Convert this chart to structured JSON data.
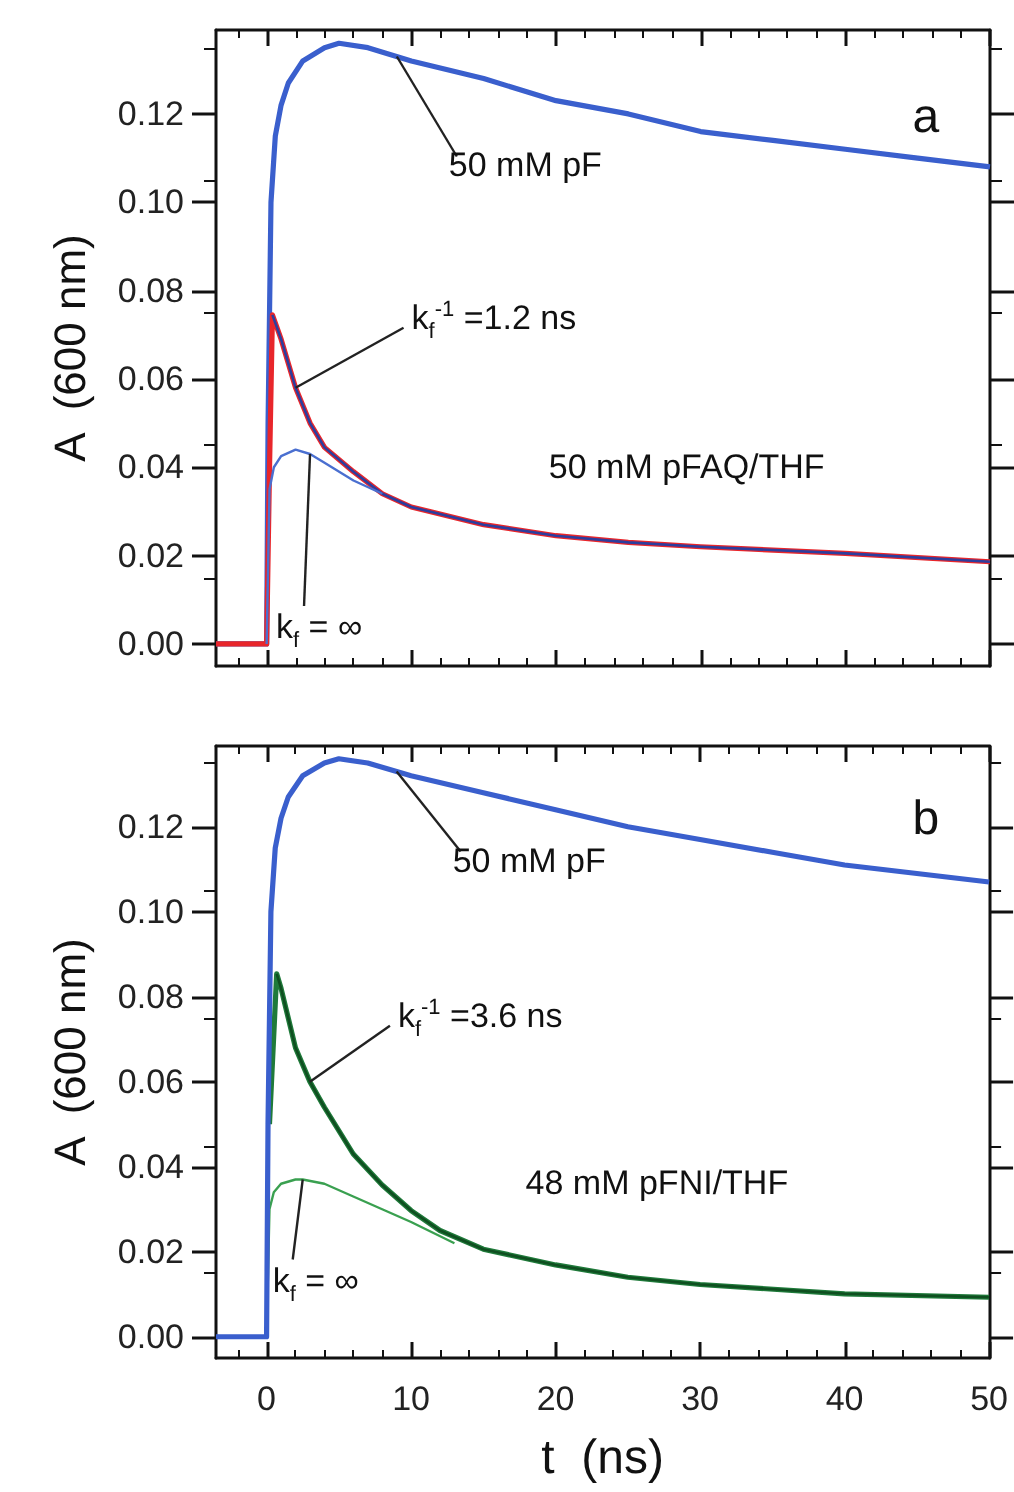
{
  "chart_data": [
    {
      "type": "line",
      "ylabel": "A  (600 nm)",
      "xlim": [
        -3.5,
        50
      ],
      "xticks": [
        0,
        10,
        20,
        30,
        40,
        50
      ],
      "ylim": [
        -0.005,
        0.139
      ],
      "yticks": [
        {
          "value": 0,
          "label": "0.00"
        },
        {
          "value": 0.02,
          "label": "0.02"
        },
        {
          "value": 0.04,
          "label": "0.04"
        },
        {
          "value": 0.06,
          "label": "0.06"
        },
        {
          "value": 0.08,
          "label": "0.08"
        },
        {
          "value": 0.1,
          "label": "0.10"
        },
        {
          "value": 0.12,
          "label": "0.12"
        }
      ],
      "tick_labels": "y",
      "marker": "none",
      "series": [
        {
          "color": "#3a5fcd",
          "x": [
            -3.5,
            -2,
            -1,
            0,
            0.1,
            0.3,
            0.6,
            1,
            1.5,
            2.5,
            4,
            5,
            7,
            10,
            15,
            20,
            25,
            30,
            35,
            40,
            45,
            50
          ],
          "values": [
            0,
            0,
            0,
            0,
            0.05,
            0.1,
            0.115,
            0.122,
            0.127,
            0.132,
            0.135,
            0.136,
            0.135,
            0.132,
            0.128,
            0.123,
            0.12,
            0.116,
            0.114,
            0.112,
            0.11,
            0.108
          ]
        },
        {
          "color": "#e8262b",
          "x": [
            -3.5,
            -2,
            -1,
            0,
            0.2,
            0.4,
            1,
            2,
            3,
            4,
            6,
            8,
            10,
            15,
            20,
            25,
            30,
            40,
            50
          ],
          "values": [
            0,
            0,
            0,
            0,
            0.04,
            0.0745,
            0.069,
            0.058,
            0.05,
            0.0445,
            0.039,
            0.034,
            0.031,
            0.027,
            0.0245,
            0.023,
            0.022,
            0.0205,
            0.0186
          ]
        },
        {
          "color": "#2c3e9e",
          "x": [
            0.4,
            1,
            2,
            3,
            4,
            6,
            8,
            10,
            15,
            20,
            25,
            30,
            40,
            50
          ],
          "values": [
            0.0745,
            0.069,
            0.058,
            0.05,
            0.0445,
            0.039,
            0.034,
            0.031,
            0.027,
            0.0245,
            0.023,
            0.022,
            0.0205,
            0.0186
          ]
        },
        {
          "color": "#4a6fd0",
          "x": [
            0,
            0.2,
            0.5,
            1,
            2,
            3,
            4,
            6,
            8
          ],
          "values": [
            0,
            0.035,
            0.04,
            0.0425,
            0.044,
            0.043,
            0.041,
            0.037,
            0.034
          ]
        }
      ],
      "annotations": [
        {
          "text": "50 mM pF",
          "x": 9,
          "y": 0.133
        },
        {
          "text": "k$_{f}$$^{-1}$ =1.2 ns",
          "x": 2,
          "y": 0.058
        },
        "50 mM pFAQ/THF",
        {
          "text": "k$_{f}$ = ∞",
          "x": 3,
          "y": 0.043
        },
        "a"
      ]
    },
    {
      "type": "line",
      "xlabel": "t  (ns)",
      "ylabel": "A  (600 nm)",
      "xlim": [
        -3.5,
        50
      ],
      "xticks": [
        0,
        10,
        20,
        30,
        40,
        50
      ],
      "ylim": [
        -0.005,
        0.139
      ],
      "yticks": [
        {
          "value": 0,
          "label": "0.00"
        },
        {
          "value": 0.02,
          "label": "0.02"
        },
        {
          "value": 0.04,
          "label": "0.04"
        },
        {
          "value": 0.06,
          "label": "0.06"
        },
        {
          "value": 0.08,
          "label": "0.08"
        },
        {
          "value": 0.1,
          "label": "0.10"
        },
        {
          "value": 0.12,
          "label": "0.12"
        }
      ],
      "marker": "none",
      "series": [
        {
          "color": "#3a5fcd",
          "x": [
            -3.5,
            -2,
            -1,
            0,
            0.1,
            0.3,
            0.6,
            1,
            1.5,
            2.5,
            4,
            5,
            7,
            10,
            15,
            20,
            25,
            30,
            35,
            40,
            45,
            50
          ],
          "values": [
            0,
            0,
            0,
            0,
            0.05,
            0.1,
            0.115,
            0.122,
            0.127,
            0.132,
            0.135,
            0.136,
            0.135,
            0.132,
            0.128,
            0.124,
            0.12,
            0.117,
            0.114,
            0.111,
            0.109,
            0.107
          ]
        },
        {
          "color": "#1f7a3a",
          "x": [
            0.2,
            0.7,
            1,
            2,
            3,
            4,
            6,
            8,
            10,
            12,
            15,
            20,
            25,
            30,
            40,
            50
          ],
          "values": [
            0.05,
            0.0854,
            0.082,
            0.068,
            0.06,
            0.054,
            0.043,
            0.0357,
            0.0297,
            0.025,
            0.0206,
            0.0169,
            0.014,
            0.0123,
            0.0101,
            0.0093
          ]
        },
        {
          "color": "#0f4f20",
          "x": [
            0.7,
            1,
            2,
            3,
            4,
            6,
            8,
            10,
            12,
            15,
            20,
            25,
            30,
            40,
            50
          ],
          "values": [
            0.0854,
            0.082,
            0.068,
            0.06,
            0.054,
            0.043,
            0.0357,
            0.0297,
            0.025,
            0.0206,
            0.0169,
            0.014,
            0.0123,
            0.0101,
            0.0093
          ]
        },
        {
          "color": "#3aa050",
          "x": [
            0,
            0.2,
            0.5,
            1,
            2,
            2.5,
            4,
            6,
            8,
            10,
            13
          ],
          "values": [
            0,
            0.03,
            0.034,
            0.036,
            0.037,
            0.037,
            0.036,
            0.033,
            0.03,
            0.027,
            0.022
          ]
        }
      ],
      "annotations": [
        {
          "text": "50 mM pF",
          "x": 9,
          "y": 0.133
        },
        {
          "text": "k$_{f}$$^{-1}$ =3.6 ns",
          "x": 3,
          "y": 0.06
        },
        "48 mM pFNI/THF",
        {
          "text": "k$_{f}$ = ∞",
          "x": 2.5,
          "y": 0.037
        },
        "b"
      ]
    }
  ]
}
